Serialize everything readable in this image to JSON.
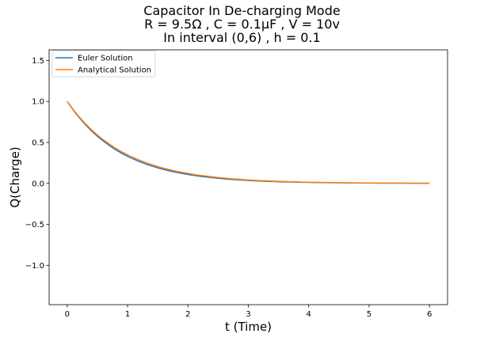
{
  "chart_data": {
    "type": "line",
    "title": [
      "Capacitor In De-charging Mode",
      "R = 9.5Ω , C = 0.1μF , V = 10v",
      "In interval (0,6) , h = 0.1"
    ],
    "xlabel": "t (Time)",
    "ylabel": "Q(Charge)",
    "xlim": [
      -0.3,
      6.3
    ],
    "ylim": [
      -1.48,
      1.63
    ],
    "xticks": [
      0,
      1,
      2,
      3,
      4,
      5,
      6
    ],
    "yticks": [
      -1.0,
      -0.5,
      0.0,
      0.5,
      1.0,
      1.5
    ],
    "xtick_labels": [
      "0",
      "1",
      "2",
      "3",
      "4",
      "5",
      "6"
    ],
    "ytick_labels": [
      "−1.0",
      "−0.5",
      "0.0",
      "0.5",
      "1.0",
      "1.5"
    ],
    "grid": false,
    "legend_position": "top-left",
    "series": [
      {
        "name": "Euler Solution",
        "color": "#1f77b4",
        "x": [
          0,
          0.1,
          0.2,
          0.3,
          0.4,
          0.5,
          0.6,
          0.7,
          0.8,
          0.9,
          1.0,
          1.1,
          1.2,
          1.3,
          1.4,
          1.5,
          1.6,
          1.7,
          1.8,
          1.9,
          2.0,
          2.1,
          2.2,
          2.3,
          2.4,
          2.5,
          2.6,
          2.7,
          2.8,
          2.9,
          3.0,
          3.1,
          3.2,
          3.3,
          3.4,
          3.5,
          3.6,
          3.7,
          3.8,
          3.9,
          4.0,
          4.1,
          4.2,
          4.3,
          4.4,
          4.5,
          4.6,
          4.7,
          4.8,
          4.9,
          5.0,
          5.1,
          5.2,
          5.3,
          5.4,
          5.5,
          5.6,
          5.7,
          5.8,
          5.9,
          6.0
        ],
        "y": [
          1.0,
          0.895,
          0.802,
          0.718,
          0.642,
          0.575,
          0.515,
          0.461,
          0.412,
          0.369,
          0.33,
          0.296,
          0.265,
          0.237,
          0.212,
          0.19,
          0.17,
          0.152,
          0.136,
          0.122,
          0.109,
          0.098,
          0.087,
          0.078,
          0.07,
          0.063,
          0.056,
          0.05,
          0.045,
          0.04,
          0.036,
          0.032,
          0.029,
          0.026,
          0.023,
          0.021,
          0.018,
          0.017,
          0.015,
          0.013,
          0.012,
          0.011,
          0.0095,
          0.0085,
          0.0076,
          0.0068,
          0.0061,
          0.0054,
          0.0049,
          0.0044,
          0.0039,
          0.0035,
          0.0031,
          0.0028,
          0.0025,
          0.0022,
          0.002,
          0.0018,
          0.0016,
          0.0014,
          0.0013
        ]
      },
      {
        "name": "Analytical Solution",
        "color": "#ff7f0e",
        "x": [
          0,
          0.1,
          0.2,
          0.3,
          0.4,
          0.5,
          0.6,
          0.7,
          0.8,
          0.9,
          1.0,
          1.1,
          1.2,
          1.3,
          1.4,
          1.5,
          1.6,
          1.7,
          1.8,
          1.9,
          2.0,
          2.1,
          2.2,
          2.3,
          2.4,
          2.5,
          2.6,
          2.7,
          2.8,
          2.9,
          3.0,
          3.1,
          3.2,
          3.3,
          3.4,
          3.5,
          3.6,
          3.7,
          3.8,
          3.9,
          4.0,
          4.1,
          4.2,
          4.3,
          4.4,
          4.5,
          4.6,
          4.7,
          4.8,
          4.9,
          5.0,
          5.1,
          5.2,
          5.3,
          5.4,
          5.5,
          5.6,
          5.7,
          5.8,
          5.9,
          6.0
        ],
        "y": [
          1.0,
          0.9,
          0.81,
          0.729,
          0.656,
          0.59,
          0.531,
          0.478,
          0.43,
          0.387,
          0.349,
          0.314,
          0.282,
          0.254,
          0.229,
          0.206,
          0.185,
          0.167,
          0.15,
          0.135,
          0.122,
          0.109,
          0.098,
          0.089,
          0.08,
          0.072,
          0.065,
          0.058,
          0.052,
          0.047,
          0.042,
          0.038,
          0.034,
          0.031,
          0.028,
          0.025,
          0.023,
          0.02,
          0.018,
          0.016,
          0.015,
          0.013,
          0.012,
          0.011,
          0.0097,
          0.0087,
          0.0079,
          0.0071,
          0.0064,
          0.0057,
          0.0052,
          0.0046,
          0.0042,
          0.0038,
          0.0034,
          0.0031,
          0.0028,
          0.0025,
          0.0022,
          0.002,
          0.0018
        ]
      }
    ]
  }
}
